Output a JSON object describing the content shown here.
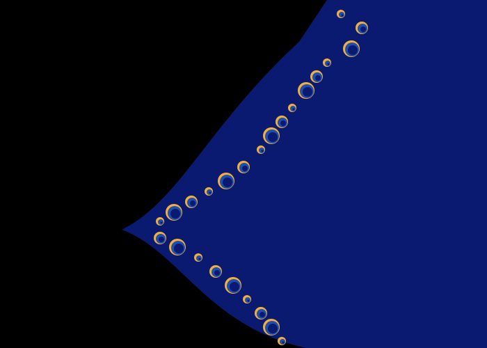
{
  "image": {
    "subject": "fractal",
    "palette": {
      "background": "#000000",
      "bands": [
        "#0a1a70",
        "#1e4fb0",
        "#3a2a10",
        "#6a4410",
        "#a86a12",
        "#d8950e",
        "#f2b03a",
        "#f7cf7a",
        "#f3e8c5",
        "#d6eaf5",
        "#b4d2ef",
        "#8cb6e4",
        "#5f95d9",
        "#3f7fd0",
        "#2f6ccb"
      ]
    }
  }
}
